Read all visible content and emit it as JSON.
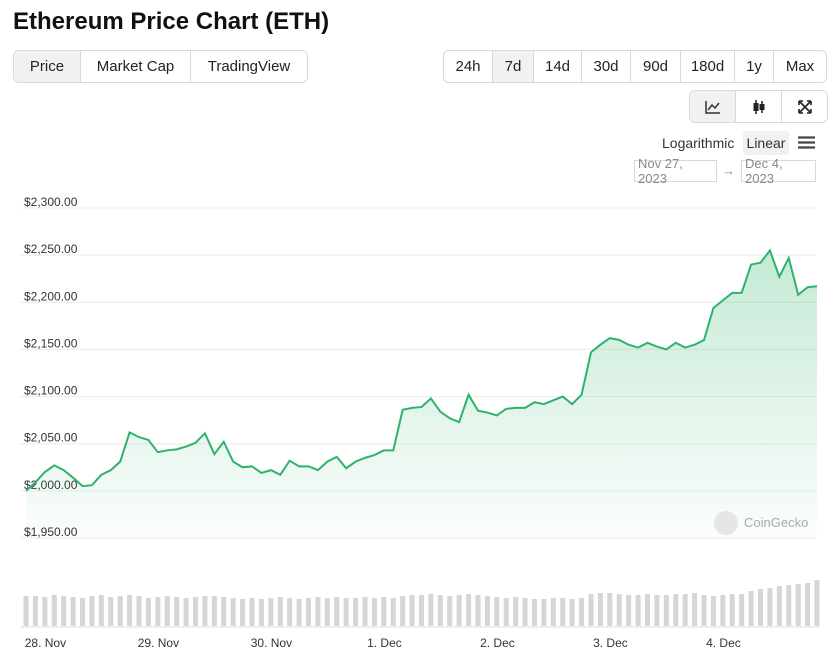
{
  "header": {
    "title": "Ethereum Price Chart (ETH)"
  },
  "tabs": [
    "Price",
    "Market Cap",
    "TradingView"
  ],
  "ranges": [
    "24h",
    "7d",
    "14d",
    "30d",
    "90d",
    "180d",
    "1y",
    "Max"
  ],
  "scale_options": [
    "Logarithmic",
    "Linear"
  ],
  "date_range": {
    "from": "Nov 27, 2023",
    "arrow": "→",
    "to": "Dec 4, 2023"
  },
  "watermark": "CoinGecko",
  "chart_data": {
    "type": "area",
    "color": "#2eb36b",
    "categories": [
      null,
      "28. Nov",
      null,
      null,
      null,
      null,
      null,
      null,
      null,
      null,
      null,
      null,
      null,
      "29. Nov",
      null,
      null,
      null,
      null,
      null,
      null,
      null,
      null,
      null,
      null,
      null,
      "30. Nov",
      null,
      null,
      null,
      null,
      null,
      null,
      null,
      null,
      null,
      null,
      null,
      "1. Dec",
      null,
      null,
      null,
      null,
      null,
      null,
      null,
      null,
      null,
      null,
      null,
      "2. Dec",
      null,
      null,
      null,
      null,
      null,
      null,
      null,
      null,
      null,
      null,
      null,
      "3. Dec",
      null,
      null,
      null,
      null,
      null,
      null,
      null,
      null,
      null,
      null,
      null,
      "4. Dec",
      null,
      null,
      null,
      null,
      null,
      null,
      null,
      null,
      null,
      null,
      null
    ],
    "values": [
      2000,
      2009,
      2020,
      2027,
      2022,
      2014,
      2005,
      2006,
      2017,
      2022,
      2031,
      2062,
      2057,
      2054,
      2041,
      2043,
      2044,
      2047,
      2051,
      2061,
      2039,
      2052,
      2031,
      2025,
      2026,
      2019,
      2022,
      2017,
      2032,
      2026,
      2026,
      2022,
      2031,
      2036,
      2024,
      2031,
      2035,
      2038,
      2043,
      2043,
      2086,
      2088,
      2089,
      2098,
      2084,
      2077,
      2073,
      2102,
      2085,
      2083,
      2080,
      2087,
      2088,
      2088,
      2094,
      2092,
      2096,
      2100,
      2092,
      2102,
      2147,
      2155,
      2162,
      2160,
      2155,
      2152,
      2157,
      2153,
      2150,
      2157,
      2152,
      2155,
      2160,
      2194,
      2202,
      2210,
      2210,
      2240,
      2242,
      2255,
      2227,
      2247,
      2208,
      2216,
      2217
    ],
    "volume": [
      30,
      30,
      29,
      31,
      30,
      29,
      28,
      30,
      31,
      29,
      30,
      31,
      30,
      28,
      29,
      30,
      29,
      28,
      29,
      30,
      30,
      29,
      28,
      27,
      28,
      27,
      28,
      29,
      28,
      27,
      28,
      29,
      28,
      29,
      28,
      28,
      29,
      28,
      29,
      28,
      30,
      31,
      31,
      32,
      31,
      30,
      31,
      32,
      31,
      30,
      29,
      28,
      29,
      28,
      27,
      27,
      28,
      28,
      27,
      28,
      32,
      33,
      33,
      32,
      31,
      31,
      32,
      31,
      31,
      32,
      32,
      33,
      31,
      30,
      31,
      32,
      32,
      35,
      37,
      38,
      40,
      41,
      42,
      43,
      46
    ],
    "ylim": [
      1950,
      2300
    ],
    "yticks": [
      {
        "value": 1950,
        "label": "$1,950.00"
      },
      {
        "value": 2000,
        "label": "$2,000.00"
      },
      {
        "value": 2050,
        "label": "$2,050.00"
      },
      {
        "value": 2100,
        "label": "$2,100.00"
      },
      {
        "value": 2150,
        "label": "$2,150.00"
      },
      {
        "value": 2200,
        "label": "$2,200.00"
      },
      {
        "value": 2250,
        "label": "$2,250.00"
      },
      {
        "value": 2300,
        "label": "$2,300.00"
      }
    ],
    "grid": true
  }
}
